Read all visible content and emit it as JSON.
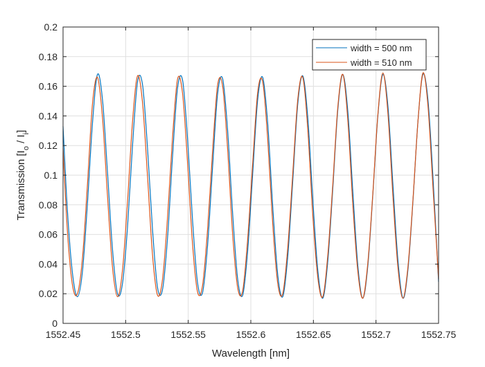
{
  "chart_data": {
    "type": "line",
    "title": "",
    "xlabel": "Wavelength [nm]",
    "ylabel_parts": {
      "prefix": "Transmission [I",
      "sub1": "o",
      "middle": " / I",
      "sub2": "i",
      "suffix": "]"
    },
    "xlim": [
      1552.45,
      1552.75
    ],
    "ylim": [
      0,
      0.2
    ],
    "xticks": [
      1552.45,
      1552.5,
      1552.55,
      1552.6,
      1552.65,
      1552.7,
      1552.75
    ],
    "xtick_labels": [
      "1552.45",
      "1552.5",
      "1552.55",
      "1552.6",
      "1552.65",
      "1552.7",
      "1552.75"
    ],
    "yticks": [
      0,
      0.02,
      0.04,
      0.06,
      0.08,
      0.1,
      0.12,
      0.14,
      0.16,
      0.18,
      0.2
    ],
    "ytick_labels": [
      "0",
      "0.02",
      "0.04",
      "0.06",
      "0.08",
      "0.1",
      "0.12",
      "0.14",
      "0.16",
      "0.18",
      "0.2"
    ],
    "grid": true,
    "legend_position": "top-right",
    "series": [
      {
        "name": "width = 500 nm",
        "color": "#0072BD",
        "x": [
          1552.45,
          1552.4535,
          1552.4575,
          1552.4615,
          1552.4655,
          1552.4695,
          1552.4735,
          1552.4775,
          1552.4815,
          1552.4855,
          1552.4895,
          1552.4935,
          1552.4975,
          1552.5015,
          1552.5055,
          1552.5095,
          1552.5135,
          1552.5175,
          1552.5215,
          1552.5255,
          1552.5295,
          1552.5335,
          1552.5375,
          1552.5415,
          1552.5455,
          1552.5495,
          1552.5535,
          1552.5575,
          1552.5615,
          1552.5655,
          1552.5695,
          1552.5735,
          1552.5775,
          1552.5815,
          1552.5855,
          1552.5895,
          1552.5935,
          1552.5975,
          1552.6015,
          1552.6055,
          1552.6095,
          1552.6135,
          1552.6175,
          1552.6215,
          1552.6255,
          1552.6295,
          1552.6335,
          1552.6375,
          1552.6415,
          1552.6455,
          1552.6495,
          1552.6535,
          1552.6575,
          1552.6615,
          1552.6655,
          1552.6695,
          1552.6735,
          1552.6775,
          1552.6815,
          1552.6855,
          1552.6895,
          1552.6935,
          1552.6975,
          1552.7015,
          1552.7055,
          1552.7095,
          1552.7135,
          1552.7175,
          1552.7215,
          1552.7255,
          1552.7295,
          1552.7335,
          1552.7375,
          1552.7415,
          1552.7455,
          1552.75
        ],
        "y": [
          0.133,
          0.076,
          0.034,
          0.018,
          0.035,
          0.081,
          0.135,
          0.168,
          0.151,
          0.102,
          0.05,
          0.02,
          0.027,
          0.065,
          0.12,
          0.163,
          0.161,
          0.118,
          0.063,
          0.024,
          0.023,
          0.058,
          0.113,
          0.159,
          0.164,
          0.124,
          0.069,
          0.027,
          0.021,
          0.053,
          0.106,
          0.155,
          0.165,
          0.13,
          0.074,
          0.03,
          0.019,
          0.049,
          0.101,
          0.151,
          0.166,
          0.135,
          0.079,
          0.033,
          0.018,
          0.045,
          0.096,
          0.148,
          0.167,
          0.139,
          0.084,
          0.036,
          0.017,
          0.042,
          0.091,
          0.144,
          0.168,
          0.143,
          0.089,
          0.039,
          0.017,
          0.039,
          0.087,
          0.14,
          0.168,
          0.147,
          0.094,
          0.043,
          0.017,
          0.036,
          0.082,
          0.136,
          0.168,
          0.151,
          0.099,
          0.028
        ]
      },
      {
        "name": "width = 510 nm",
        "color": "#D95319",
        "x": [
          1552.45,
          1552.4535,
          1552.4575,
          1552.4615,
          1552.4655,
          1552.4695,
          1552.4735,
          1552.4775,
          1552.4815,
          1552.4855,
          1552.4895,
          1552.4935,
          1552.4975,
          1552.5015,
          1552.5055,
          1552.5095,
          1552.5135,
          1552.5175,
          1552.5215,
          1552.5255,
          1552.5295,
          1552.5335,
          1552.5375,
          1552.5415,
          1552.5455,
          1552.5495,
          1552.5535,
          1552.5575,
          1552.5615,
          1552.5655,
          1552.5695,
          1552.5735,
          1552.5775,
          1552.5815,
          1552.5855,
          1552.5895,
          1552.5935,
          1552.5975,
          1552.6015,
          1552.6055,
          1552.6095,
          1552.6135,
          1552.6175,
          1552.6215,
          1552.6255,
          1552.6295,
          1552.6335,
          1552.6375,
          1552.6415,
          1552.6455,
          1552.6495,
          1552.6535,
          1552.6575,
          1552.6615,
          1552.6655,
          1552.6695,
          1552.6735,
          1552.6775,
          1552.6815,
          1552.6855,
          1552.6895,
          1552.6935,
          1552.6975,
          1552.7015,
          1552.7055,
          1552.7095,
          1552.7135,
          1552.7175,
          1552.7215,
          1552.7255,
          1552.7295,
          1552.7335,
          1552.7375,
          1552.7415,
          1552.7455,
          1552.75
        ],
        "y": [
          0.118,
          0.062,
          0.026,
          0.02,
          0.044,
          0.094,
          0.148,
          0.166,
          0.139,
          0.086,
          0.038,
          0.018,
          0.036,
          0.082,
          0.136,
          0.167,
          0.149,
          0.099,
          0.046,
          0.019,
          0.03,
          0.072,
          0.126,
          0.165,
          0.155,
          0.108,
          0.053,
          0.021,
          0.026,
          0.064,
          0.117,
          0.161,
          0.16,
          0.117,
          0.06,
          0.024,
          0.022,
          0.057,
          0.108,
          0.156,
          0.163,
          0.124,
          0.067,
          0.027,
          0.02,
          0.051,
          0.101,
          0.151,
          0.166,
          0.131,
          0.073,
          0.031,
          0.018,
          0.046,
          0.094,
          0.146,
          0.168,
          0.137,
          0.08,
          0.035,
          0.017,
          0.041,
          0.088,
          0.141,
          0.169,
          0.142,
          0.086,
          0.038,
          0.017,
          0.038,
          0.083,
          0.136,
          0.169,
          0.147,
          0.092,
          0.03
        ]
      }
    ]
  }
}
